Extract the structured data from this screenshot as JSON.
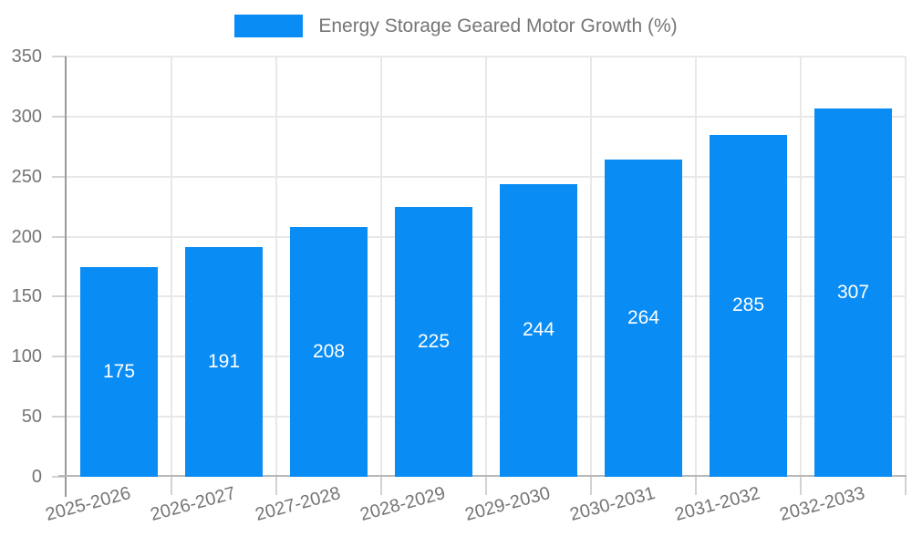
{
  "legend": {
    "position": "top-center",
    "items": [
      {
        "label": "Energy Storage Geared Motor Growth (%)",
        "color": "#0a8cf5"
      }
    ]
  },
  "chart_data": {
    "type": "bar",
    "title": "Energy Storage Geared Motor Growth (%)",
    "categories": [
      "2025-2026",
      "2026-2027",
      "2027-2028",
      "2028-2029",
      "2029-2030",
      "2030-2031",
      "2031-2032",
      "2032-2033"
    ],
    "values": [
      175,
      191,
      208,
      225,
      244,
      264,
      285,
      307
    ],
    "xlabel": "",
    "ylabel": "",
    "ylim": [
      0,
      350
    ],
    "yticks": [
      0,
      50,
      100,
      150,
      200,
      250,
      300,
      350
    ],
    "grid": true,
    "legend_position": "top-center",
    "x_label_rotation_deg": -15,
    "colors": {
      "bar": "#0a8cf5",
      "grid": "#e8e8e8",
      "tick": "#d2d2d2",
      "axis_y": "#9a9a9a",
      "axis_x": "#b8b8b8",
      "text": "#757575",
      "value_label": "#ffffff",
      "background": "#ffffff"
    }
  }
}
